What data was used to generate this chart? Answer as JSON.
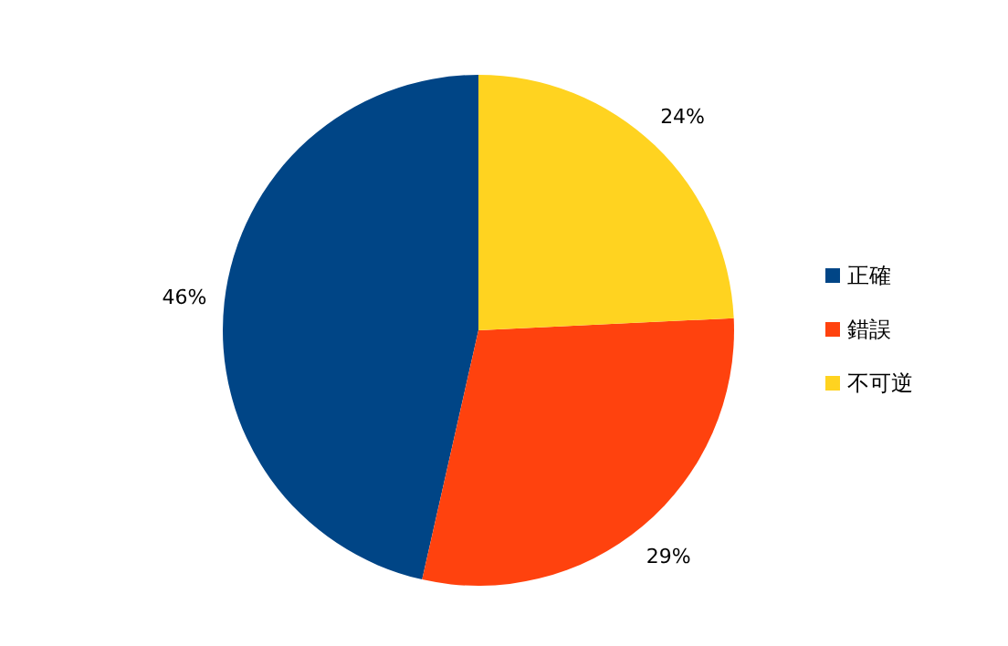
{
  "chart_data": {
    "type": "pie",
    "categories": [
      "正確",
      "錯誤",
      "不可逆"
    ],
    "values": [
      46,
      29,
      24
    ],
    "value_labels": [
      "46%",
      "29%",
      "24%"
    ],
    "colors": [
      "#004586",
      "#ff420e",
      "#ffd320"
    ],
    "legend": "right"
  }
}
